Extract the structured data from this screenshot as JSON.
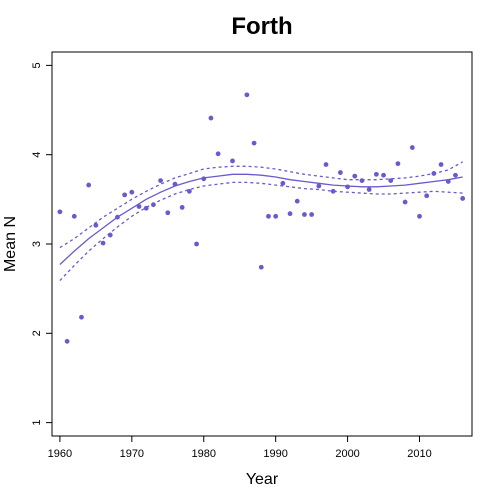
{
  "chart_data": {
    "type": "scatter",
    "title": "Forth",
    "xlabel": "Year",
    "ylabel": "Mean N",
    "xlim": [
      1958.9,
      2017.3
    ],
    "ylim": [
      0.85,
      5.15
    ],
    "xticks": [
      1960,
      1970,
      1980,
      1990,
      2000,
      2010
    ],
    "yticks": [
      1,
      2,
      3,
      4,
      5
    ],
    "grid": false,
    "colors": {
      "points": "#6a5acd",
      "fit": "#6a5acd",
      "axes": "#000000"
    },
    "series": [
      {
        "type": "scatter",
        "x": [
          1960,
          1961,
          1962,
          1963,
          1964,
          1965,
          1966,
          1967,
          1968,
          1969,
          1970,
          1971,
          1972,
          1973,
          1974,
          1975,
          1976,
          1977,
          1978,
          1979,
          1980,
          1981,
          1982,
          1984,
          1986,
          1987,
          1988,
          1989,
          1990,
          1991,
          1992,
          1993,
          1994,
          1995,
          1996,
          1997,
          1998,
          1999,
          2000,
          2001,
          2002,
          2003,
          2004,
          2005,
          2006,
          2007,
          2008,
          2009,
          2010,
          2011,
          2012,
          2013,
          2014,
          2015,
          2016
        ],
        "y": [
          3.36,
          1.91,
          3.31,
          2.18,
          3.66,
          3.21,
          3.01,
          3.1,
          3.3,
          3.55,
          3.58,
          3.42,
          3.4,
          3.44,
          3.71,
          3.35,
          3.67,
          3.41,
          3.59,
          3.0,
          3.73,
          4.41,
          4.01,
          3.93,
          4.67,
          4.13,
          2.74,
          3.31,
          3.31,
          3.68,
          3.34,
          3.48,
          3.33,
          3.33,
          3.65,
          3.89,
          3.59,
          3.8,
          3.64,
          3.76,
          3.71,
          3.61,
          3.78,
          3.77,
          3.71,
          3.9,
          3.47,
          4.08,
          3.31,
          3.54,
          3.79,
          3.89,
          3.7,
          3.77,
          3.51
        ]
      },
      {
        "type": "line",
        "style": "solid",
        "x": [
          1960,
          1962,
          1964,
          1966,
          1968,
          1970,
          1972,
          1974,
          1976,
          1978,
          1980,
          1982,
          1984,
          1986,
          1988,
          1990,
          1992,
          1994,
          1996,
          1998,
          2000,
          2002,
          2004,
          2006,
          2008,
          2010,
          2012,
          2014,
          2016
        ],
        "y": [
          2.77,
          2.92,
          3.06,
          3.18,
          3.3,
          3.4,
          3.5,
          3.58,
          3.65,
          3.7,
          3.74,
          3.76,
          3.78,
          3.78,
          3.77,
          3.75,
          3.72,
          3.7,
          3.68,
          3.66,
          3.65,
          3.64,
          3.64,
          3.65,
          3.66,
          3.68,
          3.7,
          3.72,
          3.75
        ]
      },
      {
        "type": "line",
        "style": "dashed",
        "x": [
          1960,
          1962,
          1964,
          1966,
          1968,
          1970,
          1972,
          1974,
          1976,
          1978,
          1980,
          1982,
          1984,
          1986,
          1988,
          1990,
          1992,
          1994,
          1996,
          1998,
          2000,
          2002,
          2004,
          2006,
          2008,
          2010,
          2012,
          2014,
          2016
        ],
        "y": [
          2.96,
          3.06,
          3.18,
          3.3,
          3.4,
          3.5,
          3.59,
          3.67,
          3.74,
          3.79,
          3.84,
          3.86,
          3.87,
          3.87,
          3.86,
          3.84,
          3.81,
          3.78,
          3.76,
          3.74,
          3.72,
          3.72,
          3.72,
          3.73,
          3.74,
          3.76,
          3.79,
          3.83,
          3.92
        ]
      },
      {
        "type": "line",
        "style": "dashed",
        "x": [
          1960,
          1962,
          1964,
          1966,
          1968,
          1970,
          1972,
          1974,
          1976,
          1978,
          1980,
          1982,
          1984,
          1986,
          1988,
          1990,
          1992,
          1994,
          1996,
          1998,
          2000,
          2002,
          2004,
          2006,
          2008,
          2010,
          2012,
          2014,
          2016
        ],
        "y": [
          2.59,
          2.76,
          2.92,
          3.06,
          3.19,
          3.31,
          3.41,
          3.49,
          3.56,
          3.61,
          3.65,
          3.67,
          3.69,
          3.69,
          3.68,
          3.66,
          3.64,
          3.62,
          3.61,
          3.59,
          3.58,
          3.57,
          3.56,
          3.56,
          3.57,
          3.58,
          3.59,
          3.58,
          3.57
        ]
      }
    ]
  }
}
